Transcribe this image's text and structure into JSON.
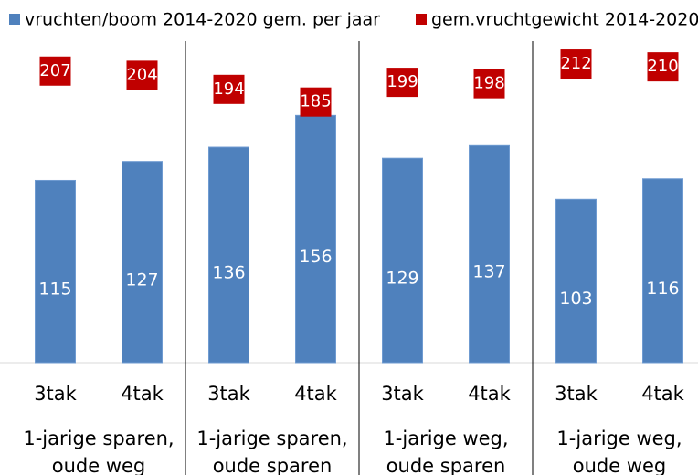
{
  "chart_data": {
    "type": "bar",
    "categories": [
      "3tak",
      "4tak",
      "3tak",
      "4tak",
      "3tak",
      "4tak",
      "3tak",
      "4tak"
    ],
    "groups": [
      {
        "lines": [
          "1-jarige sparen,",
          "oude weg"
        ]
      },
      {
        "lines": [
          "1-jarige sparen,",
          "oude sparen"
        ]
      },
      {
        "lines": [
          "1-jarige weg,",
          "oude sparen"
        ]
      },
      {
        "lines": [
          "1-jarige weg,",
          "oude weg"
        ]
      }
    ],
    "series": [
      {
        "name": "vruchten/boom  2014-2020 gem. per jaar",
        "color": "#4f81bd",
        "values": [
          115,
          127,
          136,
          156,
          129,
          137,
          103,
          116
        ]
      },
      {
        "name": "gem.vruchtgewicht 2014-2020",
        "color": "#c00000",
        "axis": "y2",
        "values": [
          207,
          204,
          194,
          185,
          199,
          198,
          212,
          210
        ]
      }
    ],
    "ylim": [
      0,
      200
    ],
    "y2lim": [
      0,
      225
    ],
    "legend": "top"
  }
}
